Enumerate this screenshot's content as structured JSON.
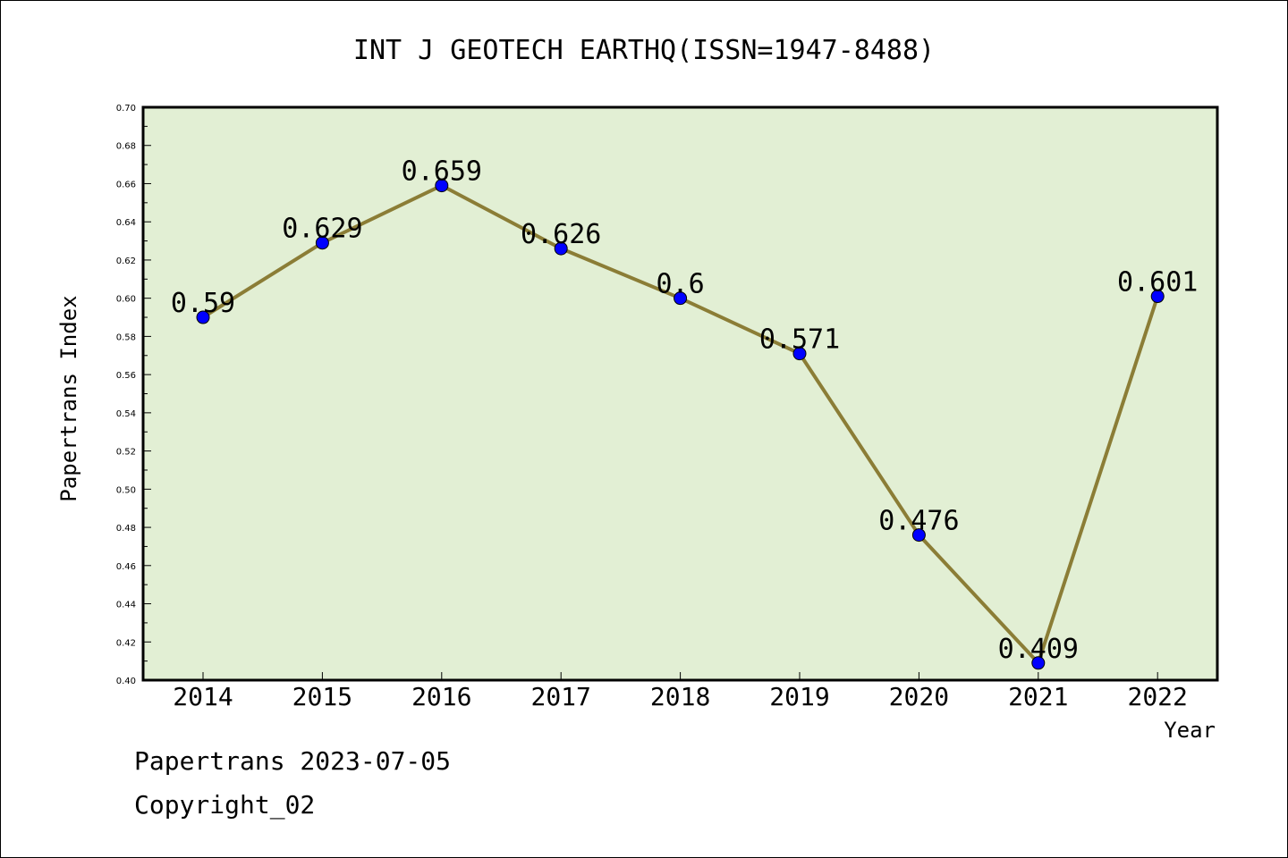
{
  "chart_data": {
    "type": "line",
    "title": "INT J GEOTECH EARTHQ(ISSN=1947-8488)",
    "xlabel": "Year",
    "ylabel": "Papertrans Index",
    "categories": [
      "2014",
      "2015",
      "2016",
      "2017",
      "2018",
      "2019",
      "2020",
      "2021",
      "2022"
    ],
    "series": [
      {
        "values": [
          0.59,
          0.629,
          0.659,
          0.626,
          0.6,
          0.571,
          0.476,
          0.409,
          0.601
        ],
        "labels": [
          "0.59",
          "0.629",
          "0.659",
          "0.626",
          "0.6",
          "0.571",
          "0.476",
          "0.409",
          "0.601"
        ]
      }
    ],
    "ylim": [
      0.4,
      0.7
    ],
    "yticks": [
      "0.40",
      "0.42",
      "0.44",
      "0.46",
      "0.48",
      "0.50",
      "0.52",
      "0.54",
      "0.56",
      "0.58",
      "0.60",
      "0.62",
      "0.64",
      "0.66",
      "0.68",
      "0.70"
    ],
    "grid": false,
    "colors": {
      "plot_background": "#e2efd4",
      "line": "#8b7d36",
      "marker": "#0000ff"
    }
  },
  "footer": {
    "line1": "Papertrans 2023-07-05",
    "line2": "Copyright_02"
  }
}
